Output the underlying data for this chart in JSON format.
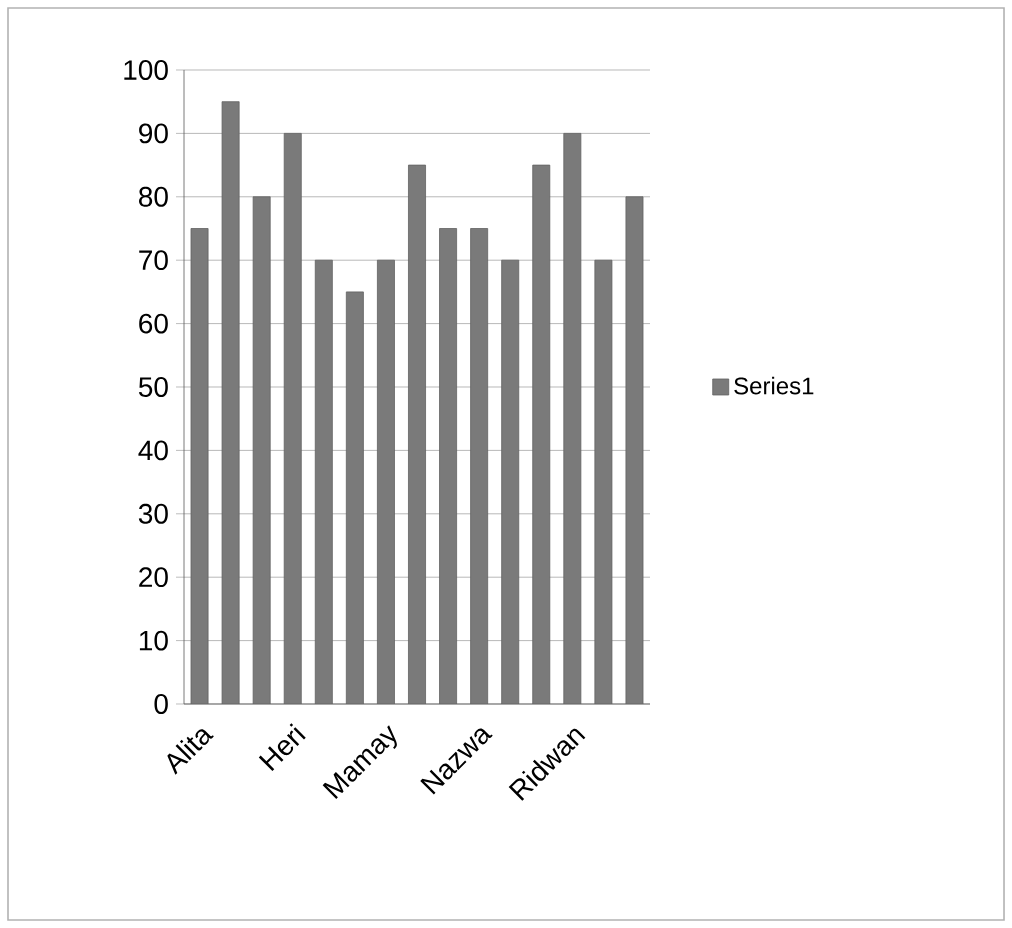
{
  "chart_data": {
    "type": "bar",
    "categories": [
      "Alita",
      null,
      null,
      "Heri",
      null,
      null,
      "Mamay",
      null,
      null,
      "Nazwa",
      null,
      null,
      "Ridwan",
      null,
      null
    ],
    "series": [
      {
        "name": "Series1",
        "color": "#7a7a7a",
        "values": [
          75,
          95,
          80,
          90,
          70,
          65,
          70,
          85,
          75,
          75,
          70,
          85,
          90,
          70,
          80
        ]
      }
    ],
    "ylim": [
      0,
      100
    ],
    "yticks": [
      0,
      10,
      20,
      30,
      40,
      50,
      60,
      70,
      80,
      90,
      100
    ],
    "grid": "y",
    "legend": "right"
  }
}
